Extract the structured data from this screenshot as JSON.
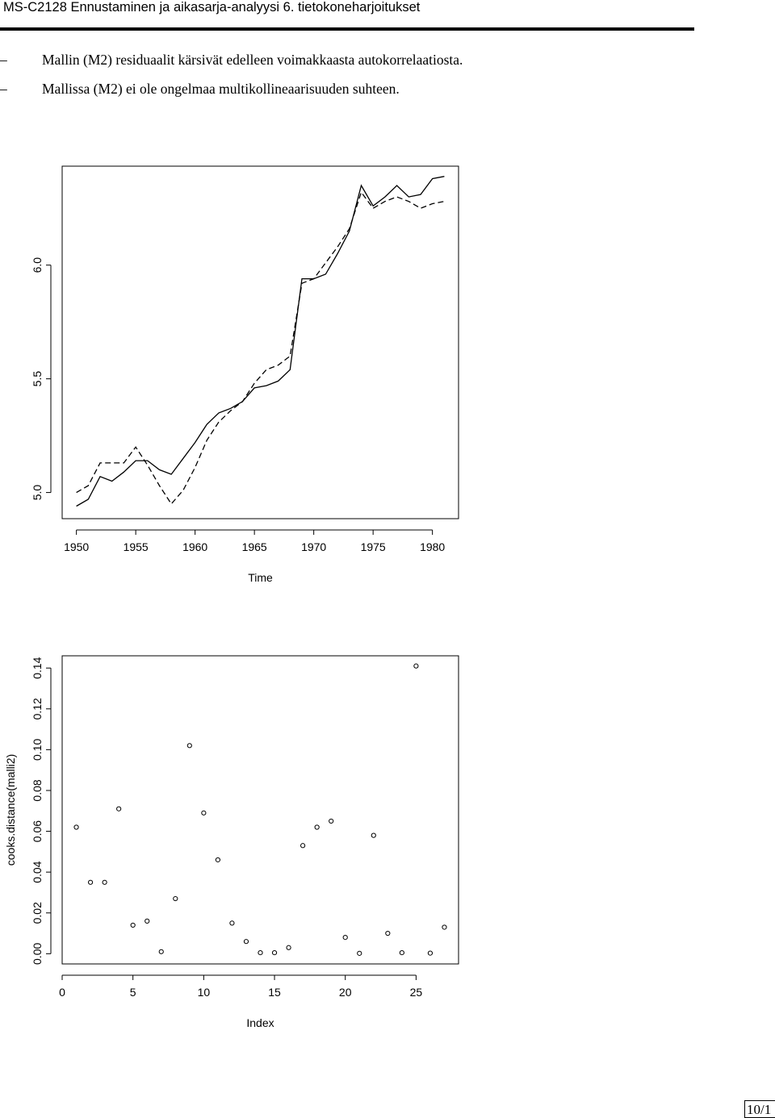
{
  "header": {
    "title": "MS-C2128 Ennustaminen ja aikasarja-analyysi 6. tietokoneharjoitukset"
  },
  "bullets": [
    {
      "dash": "–",
      "text": "Mallin (M2) residuaalit kärsivät edelleen voimakkaasta autokorrelaatiosta."
    },
    {
      "dash": "–",
      "text": "Mallissa (M2) ei ole ongelmaa multikollineaarisuuden suhteen."
    }
  ],
  "chart_data": [
    {
      "type": "line",
      "title": "",
      "xlabel": "Time",
      "ylabel": "",
      "xlim": [
        1948.8,
        1982.2
      ],
      "ylim": [
        4.885,
        6.435
      ],
      "xticks": [
        1950,
        1955,
        1960,
        1965,
        1970,
        1975,
        1980
      ],
      "yticks": [
        5.0,
        5.5,
        6.0
      ],
      "ytick_labels": [
        "5.0",
        "5.5",
        "6.0"
      ],
      "grid": false,
      "x": [
        1950,
        1951,
        1952,
        1953,
        1954,
        1955,
        1956,
        1957,
        1958,
        1959,
        1960,
        1961,
        1962,
        1963,
        1964,
        1965,
        1966,
        1967,
        1968,
        1969,
        1970,
        1971,
        1972,
        1973,
        1974,
        1975,
        1976,
        1977,
        1978,
        1979,
        1980,
        1981
      ],
      "series": [
        {
          "style": "solid",
          "values": [
            4.94,
            4.97,
            5.07,
            5.05,
            5.09,
            5.14,
            5.14,
            5.1,
            5.08,
            5.15,
            5.22,
            5.3,
            5.35,
            5.37,
            5.4,
            5.46,
            5.47,
            5.49,
            5.54,
            5.94,
            5.94,
            5.96,
            6.05,
            6.15,
            6.35,
            6.26,
            6.3,
            6.35,
            6.3,
            6.31,
            6.38,
            6.39
          ]
        },
        {
          "style": "dashed",
          "values": [
            5.0,
            5.03,
            5.13,
            5.13,
            5.13,
            5.2,
            5.12,
            5.03,
            4.95,
            5.01,
            5.11,
            5.23,
            5.31,
            5.36,
            5.4,
            5.48,
            5.54,
            5.56,
            5.6,
            5.92,
            5.94,
            6.01,
            6.08,
            6.16,
            6.32,
            6.25,
            6.28,
            6.3,
            6.28,
            6.25,
            6.27,
            6.28
          ]
        }
      ]
    },
    {
      "type": "scatter",
      "title": "",
      "xlabel": "Index",
      "ylabel": "cooks.distance(malli2)",
      "xlim": [
        0,
        28
      ],
      "ylim": [
        -0.005,
        0.146
      ],
      "xticks": [
        0,
        5,
        10,
        15,
        20,
        25
      ],
      "yticks": [
        0,
        0.02,
        0.04,
        0.06,
        0.08,
        0.1,
        0.12,
        0.14
      ],
      "ytick_labels": [
        "0.00",
        "0.02",
        "0.04",
        "0.06",
        "0.08",
        "0.10",
        "0.12",
        "0.14"
      ],
      "grid": false,
      "x": [
        1,
        2,
        3,
        4,
        5,
        6,
        7,
        8,
        9,
        10,
        11,
        12,
        13,
        14,
        15,
        16,
        17,
        18,
        19,
        20,
        21,
        22,
        23,
        24,
        25,
        26,
        27
      ],
      "y": [
        0.062,
        0.035,
        0.035,
        0.071,
        0.014,
        0.016,
        0.001,
        0.027,
        0.102,
        0.069,
        0.046,
        0.015,
        0.006,
        0.0005,
        0.0005,
        0.003,
        0.053,
        0.062,
        0.065,
        0.008,
        0.0002,
        0.058,
        0.01,
        0.0005,
        0.141,
        0.0003,
        0.013
      ]
    }
  ],
  "page_number": "10/1"
}
